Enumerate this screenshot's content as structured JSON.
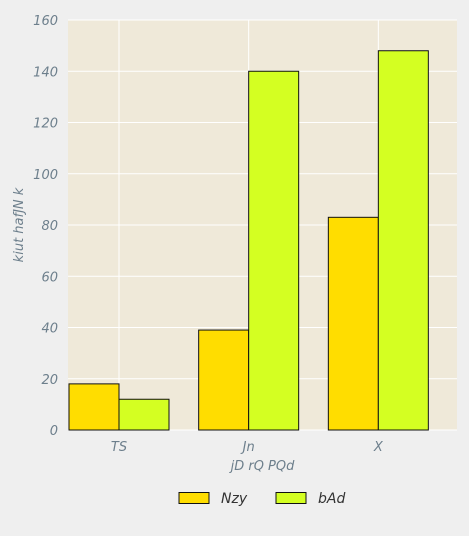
{
  "chart_data": {
    "type": "bar",
    "categories": [
      "TS",
      "Jn",
      "X"
    ],
    "series": [
      {
        "name": "Nzy",
        "values": [
          18,
          39,
          83
        ],
        "color": "#ffdd00"
      },
      {
        "name": "bAd",
        "values": [
          12,
          140,
          148
        ],
        "color": "#d4ff22"
      }
    ],
    "xlabel": "jD  rQ PQd",
    "ylabel": "kiut hafJN k",
    "ylim": [
      0,
      160
    ],
    "yticks": [
      0,
      20,
      40,
      60,
      80,
      100,
      120,
      140,
      160
    ],
    "grid": true,
    "legend": "bottom-center",
    "colors": {
      "plot_background": "#efe9d9",
      "figure_background": "#efefef",
      "grid": "#ffffff",
      "tick_text": "#6d7f8c",
      "bar_edge": "#111111"
    }
  }
}
